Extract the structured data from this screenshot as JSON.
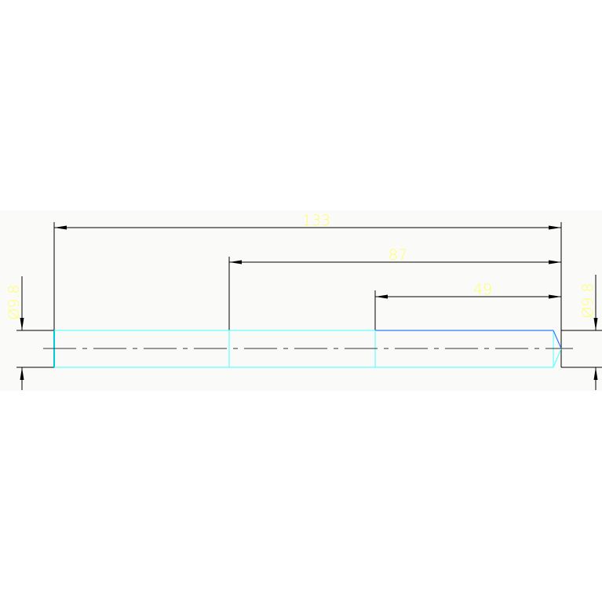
{
  "drawing": {
    "dimensions": {
      "overall": "133",
      "middle": "87",
      "short": "49",
      "diameter_left": "Ø9.8",
      "diameter_right": "Ø9.8"
    },
    "colors": {
      "background": "#fafbf8",
      "dimension_line": "#000000",
      "dimension_text": "#ffff66",
      "outline": "#66ffff",
      "outline_highlight": "#3377ff",
      "centerline": "#333333"
    }
  }
}
